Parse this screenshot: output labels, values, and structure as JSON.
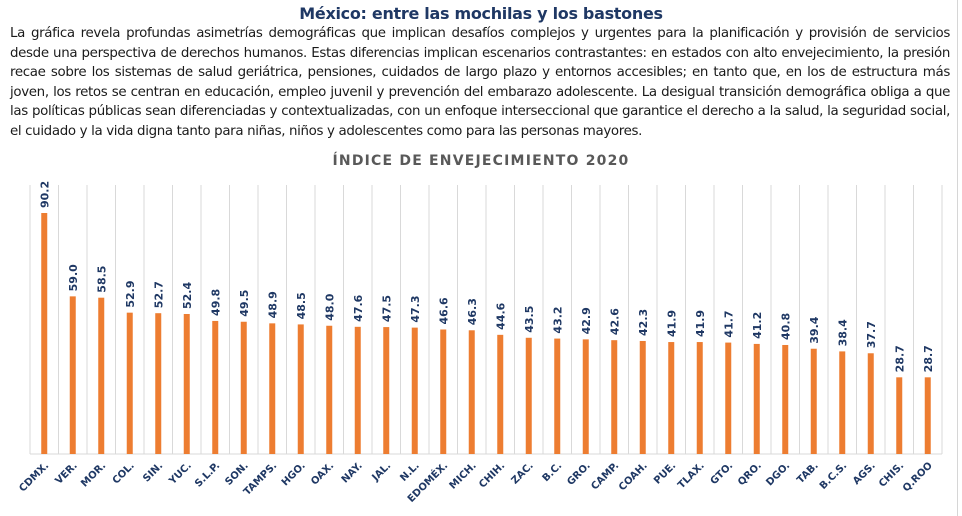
{
  "header": {
    "title": "México: entre las mochilas y los bastones",
    "paragraph": "La gráfica revela profundas asimetrías demográficas que implican desafíos complejos y urgentes para la planificación y provisión de servicios desde una perspectiva de derechos humanos. Estas diferencias implican escenarios contrastantes: en estados con alto envejecimiento, la presión recae sobre los sistemas de salud geriátrica, pensiones, cuidados de largo plazo y entornos accesibles; en tanto que, en los de estructura más joven, los retos se centran en educación, empleo juvenil y prevención del embarazo adolescente. La desigual transición demográfica obliga a que las políticas públicas sean diferenciadas y contextualizadas, con un enfoque interseccional que garantice el derecho a la salud, la seguridad social, el cuidado y la vida digna tanto para niñas, niños y adolescentes como para las personas mayores."
  },
  "colors": {
    "bar": "#ed7d31",
    "labels": "#1f3864",
    "title": "#595959",
    "grid": "#d9d9d9"
  },
  "chart_data": {
    "type": "bar",
    "title": "ÍNDICE DE ENVEJECIMIENTO 2020",
    "xlabel": "",
    "ylabel": "",
    "ylim": [
      0,
      100
    ],
    "grid": "vertical",
    "legend": "none",
    "categories": [
      "CDMX.",
      "VER.",
      "MOR.",
      "COL.",
      "SIN.",
      "YUC.",
      "S.L.P.",
      "SON.",
      "TAMPS.",
      "HGO.",
      "OAX.",
      "NAY.",
      "JAL.",
      "N.L.",
      "EDOMÉX.",
      "MICH.",
      "CHIH.",
      "ZAC.",
      "B.C.",
      "GRO.",
      "CAMP.",
      "COAH.",
      "PUE.",
      "TLAX.",
      "GTO.",
      "QRO.",
      "DGO.",
      "TAB.",
      "B.C.S.",
      "AGS.",
      "CHIS.",
      "Q.ROO"
    ],
    "values": [
      90.2,
      59.0,
      58.5,
      52.9,
      52.7,
      52.4,
      49.8,
      49.5,
      48.9,
      48.5,
      48.0,
      47.6,
      47.5,
      47.3,
      46.6,
      46.3,
      44.6,
      43.5,
      43.2,
      42.9,
      42.6,
      42.3,
      41.9,
      41.9,
      41.7,
      41.2,
      40.8,
      39.4,
      38.4,
      37.7,
      28.7,
      28.7
    ],
    "value_labels": [
      "90.2",
      "59.0",
      "58.5",
      "52.9",
      "52.7",
      "52.4",
      "49.8",
      "49.5",
      "48.9",
      "48.5",
      "48.0",
      "47.6",
      "47.5",
      "47.3",
      "46.6",
      "46.3",
      "44.6",
      "43.5",
      "43.2",
      "42.9",
      "42.6",
      "42.3",
      "41.9",
      "41.9",
      "41.7",
      "41.2",
      "40.8",
      "39.4",
      "38.4",
      "37.7",
      "28.7",
      "28.7"
    ]
  }
}
